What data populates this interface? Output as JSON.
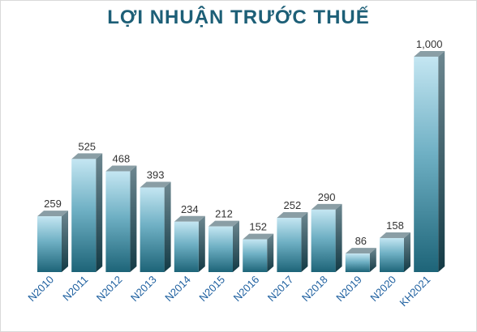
{
  "chart_data": {
    "type": "bar",
    "title": "LỢI NHUẬN TRƯỚC THUẾ",
    "xlabel": "",
    "ylabel": "",
    "categories": [
      "N2010",
      "N2011",
      "N2012",
      "N2013",
      "N2014",
      "N2015",
      "N2016",
      "N2017",
      "N2018",
      "N2019",
      "N2020",
      "KH2021"
    ],
    "values": [
      259,
      525,
      468,
      393,
      234,
      212,
      152,
      252,
      290,
      86,
      158,
      1000
    ],
    "value_labels": [
      "259",
      "525",
      "468",
      "393",
      "234",
      "212",
      "152",
      "252",
      "290",
      "86",
      "158",
      "1,000"
    ],
    "ylim": [
      0,
      1000
    ],
    "grid": false,
    "legend": "none",
    "style": "3d-column",
    "colors": {
      "bar_top": "#c4e6f2",
      "bar_bottom": "#1d6478",
      "bar_side": "#15404c",
      "bar_cap": "#8a9ea5",
      "title": "#1d5f77",
      "category_text": "#1d5f9f"
    }
  }
}
